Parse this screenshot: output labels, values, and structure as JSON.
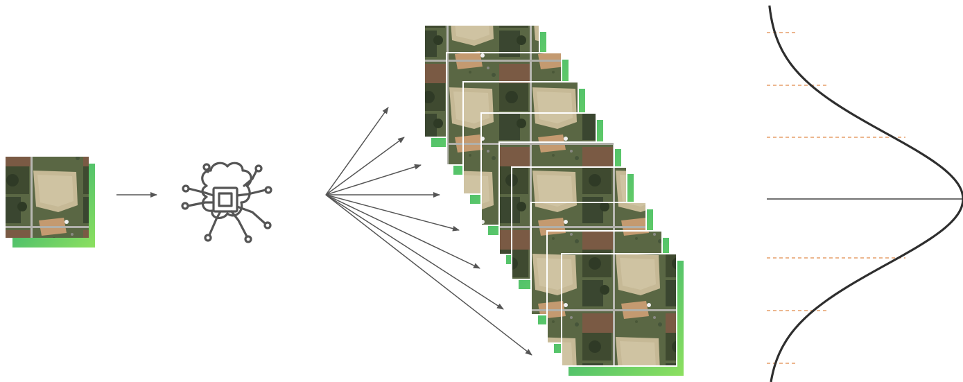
{
  "figure": {
    "input_image": {
      "kind": "aerial-photo-with-ndvi-layer"
    },
    "model_icon": "ai-chip-brain-icon",
    "ensemble": {
      "kind": "aerial-photo-with-ndvi-layer"
    },
    "distribution": {
      "kind": "gaussian-bell-curve"
    }
  },
  "colors": {
    "line": "#555555",
    "curve": "#2e2e2e",
    "dashed": "#e08a4a",
    "ndvi_dark": "#2aa06a",
    "ndvi_light": "#8de060"
  }
}
